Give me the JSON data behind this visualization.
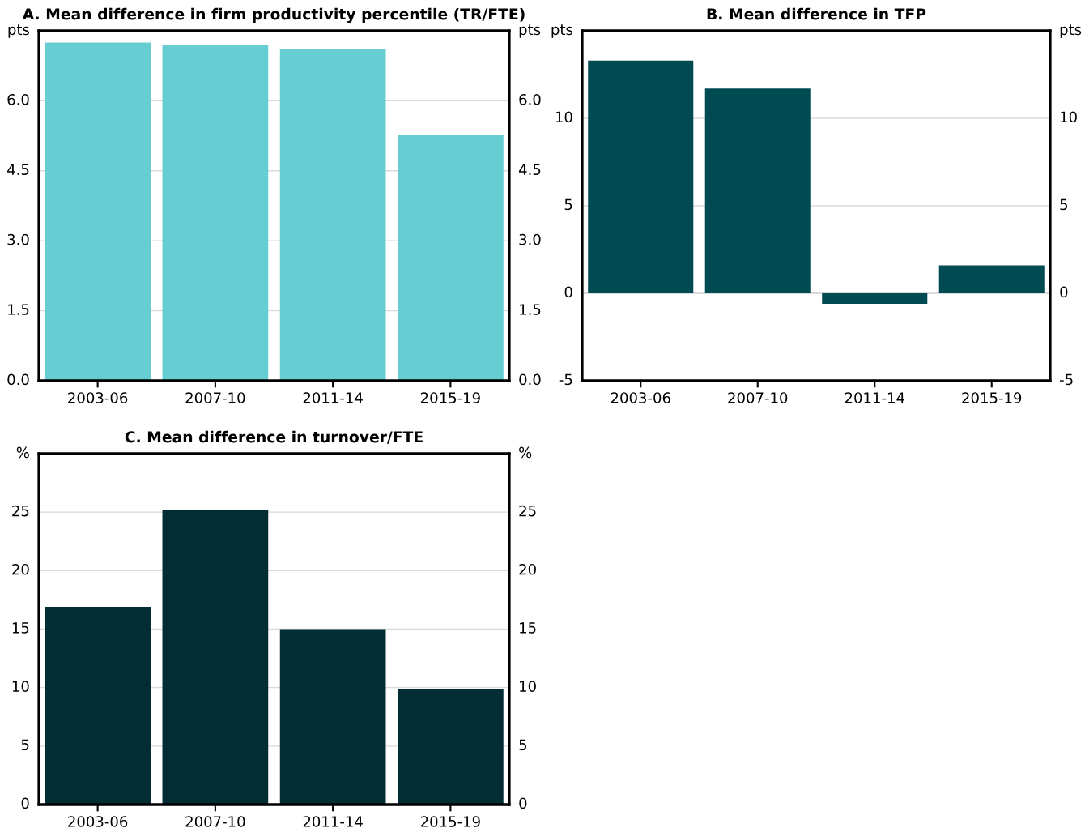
{
  "chart_data": [
    {
      "type": "bar",
      "title": "A. Mean difference in firm productivity percentile (TR/FTE)",
      "categories": [
        "2003-06",
        "2007-10",
        "2011-14",
        "2015-19"
      ],
      "values": [
        7.25,
        7.19,
        7.11,
        5.26
      ],
      "color": "#66cdd2",
      "ylim": [
        0,
        7.5
      ],
      "yticks": [
        {
          "value": 0,
          "label": "0.0"
        },
        {
          "value": 1.5,
          "label": "1.5"
        },
        {
          "value": 3.0,
          "label": "3.0"
        },
        {
          "value": 4.5,
          "label": "4.5"
        },
        {
          "value": 6.0,
          "label": "6.0"
        },
        {
          "value": 7.5,
          "label": "pts"
        }
      ],
      "y2lim": [
        0,
        7.5
      ],
      "y2ticks": [
        {
          "value": 0,
          "label": "0.0"
        },
        {
          "value": 1.5,
          "label": "1.5"
        },
        {
          "value": 3.0,
          "label": "3.0"
        },
        {
          "value": 4.5,
          "label": "4.5"
        },
        {
          "value": 6.0,
          "label": "6.0"
        },
        {
          "value": 7.5,
          "label": "pts"
        }
      ],
      "grid": "y",
      "legend": false
    },
    {
      "type": "bar",
      "title": "B. Mean difference in TFP",
      "categories": [
        "2003-06",
        "2007-10",
        "2011-14",
        "2015-19"
      ],
      "values": [
        13.3,
        11.7,
        -0.6,
        1.6
      ],
      "color": "#004b52",
      "ylim": [
        -5,
        15
      ],
      "yticks": [
        -5,
        0,
        5,
        10,
        {
          "value": 15,
          "label": "pts"
        }
      ],
      "y2lim": [
        -5,
        15
      ],
      "y2ticks": [
        -5,
        0,
        5,
        10,
        {
          "value": 15,
          "label": "pts"
        }
      ],
      "grid": "y",
      "legend": false
    },
    {
      "type": "bar",
      "title": "C. Mean difference in turnover/FTE",
      "categories": [
        "2003-06",
        "2007-10",
        "2011-14",
        "2015-19"
      ],
      "values": [
        16.9,
        25.2,
        15.0,
        9.9
      ],
      "color": "#022d35",
      "ylim": [
        0,
        30
      ],
      "yticks": [
        0,
        5,
        10,
        15,
        20,
        25,
        {
          "value": 30,
          "label": "%"
        }
      ],
      "y2lim": [
        0,
        30
      ],
      "y2ticks": [
        0,
        5,
        10,
        15,
        20,
        25,
        {
          "value": 30,
          "label": "%"
        }
      ],
      "grid": "y",
      "legend": false
    }
  ]
}
